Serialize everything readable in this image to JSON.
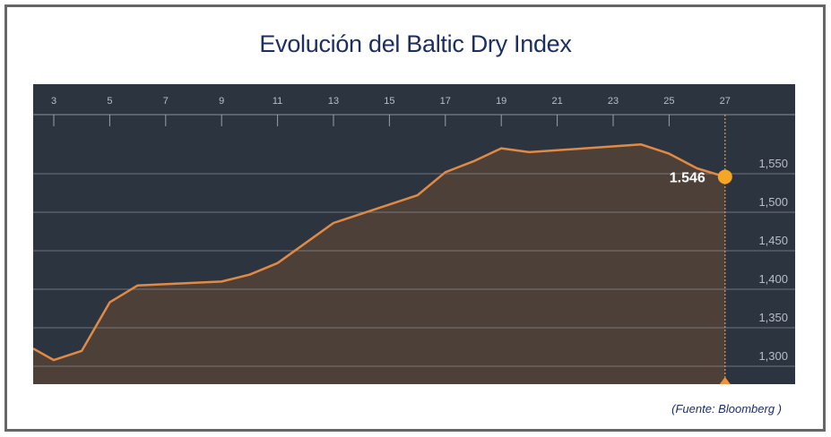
{
  "title": "Evolución del Baltic Dry Index",
  "source": "(Fuente: Bloomberg )",
  "colors": {
    "background": "#2c3440",
    "area_fill": "#4d4039",
    "line": "#e08a45",
    "marker": "#f5a623",
    "gridline": "#8a8e94",
    "title": "#1b2f63"
  },
  "last_value_label": "1.546",
  "chart_data": {
    "type": "area",
    "title": "Evolución del Baltic Dry Index",
    "xlabel": "",
    "ylabel": "",
    "x_ticks": [
      "3",
      "5",
      "7",
      "9",
      "11",
      "13",
      "15",
      "17",
      "19",
      "21",
      "23",
      "25",
      "27"
    ],
    "y_ticks": [
      "1,300",
      "1,350",
      "1,400",
      "1,450",
      "1,500",
      "1,550"
    ],
    "ylim": [
      1270,
      1660
    ],
    "grid": true,
    "legend": "none",
    "x": [
      2.25,
      3,
      4,
      5,
      6,
      9,
      10,
      11,
      13,
      14,
      16,
      17,
      18,
      19,
      20,
      24,
      25,
      26,
      27
    ],
    "values": [
      1323,
      1308,
      1320,
      1383,
      1405,
      1410,
      1419,
      1434,
      1486,
      1498,
      1522,
      1552,
      1566,
      1583,
      1578,
      1588,
      1576,
      1557,
      1546
    ],
    "annotations": [
      {
        "x": 27,
        "y": 1546,
        "text": "1.546"
      }
    ]
  }
}
